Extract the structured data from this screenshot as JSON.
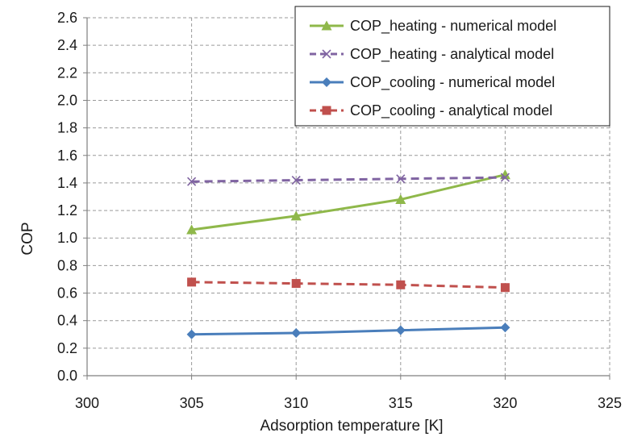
{
  "chart_data": {
    "type": "line",
    "title": "",
    "xlabel": "Adsorption temperature [K]",
    "ylabel": "COP",
    "xlim": [
      300,
      325
    ],
    "ylim": [
      0,
      2.6
    ],
    "xticks": [
      "300",
      "305",
      "310",
      "315",
      "320",
      "325"
    ],
    "yticks": [
      "0.0",
      "0.2",
      "0.4",
      "0.6",
      "0.8",
      "1.0",
      "1.2",
      "1.4",
      "1.6",
      "1.8",
      "2.0",
      "2.2",
      "2.4",
      "2.6"
    ],
    "grid": true,
    "legend_position": "top-right",
    "x": [
      305,
      310,
      315,
      320
    ],
    "series": [
      {
        "name": "COP_heating - numerical model",
        "values": [
          1.06,
          1.16,
          1.28,
          1.46
        ],
        "color": "#8fb84a",
        "marker": "triangle",
        "dash": "solid"
      },
      {
        "name": "COP_heating - analytical model",
        "values": [
          1.41,
          1.42,
          1.43,
          1.44
        ],
        "color": "#8064a2",
        "marker": "x",
        "dash": "dashed"
      },
      {
        "name": "COP_cooling - numerical model",
        "values": [
          0.3,
          0.31,
          0.33,
          0.35
        ],
        "color": "#4a7ebb",
        "marker": "diamond",
        "dash": "solid"
      },
      {
        "name": "COP_cooling - analytical model",
        "values": [
          0.68,
          0.67,
          0.66,
          0.64
        ],
        "color": "#c0504d",
        "marker": "square",
        "dash": "dashed"
      }
    ]
  }
}
